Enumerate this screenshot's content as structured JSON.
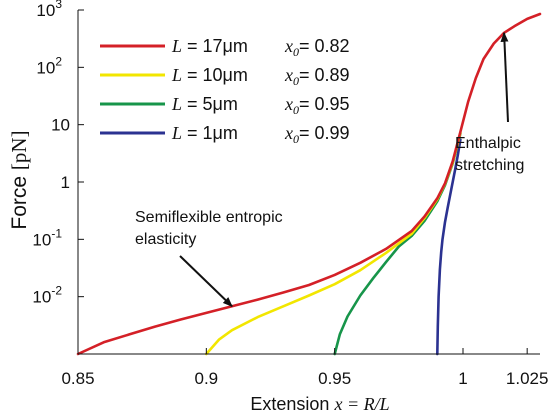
{
  "chart_data": {
    "type": "line",
    "xlabel": {
      "prefix": "Extension ",
      "formula": "x = R/L"
    },
    "ylabel": {
      "prefix": "Force ",
      "unit": "[pN]"
    },
    "x_scale": "linear",
    "y_scale": "log",
    "xlim": [
      0.85,
      1.03
    ],
    "ylim": [
      0.001,
      1000
    ],
    "grid": false,
    "legend_position": "top-left",
    "x_ticks": [
      {
        "value": 0.85,
        "label": "0.85"
      },
      {
        "value": 0.9,
        "label": "0.9"
      },
      {
        "value": 0.95,
        "label": "0.95"
      },
      {
        "value": 1.0,
        "label": "1"
      },
      {
        "value": 1.025,
        "label": "1.025"
      }
    ],
    "y_ticks": [
      {
        "value": 0.01,
        "base": "10",
        "exp": "-2"
      },
      {
        "value": 0.1,
        "base": "10",
        "exp": "-1"
      },
      {
        "value": 1,
        "base": "1",
        "exp": ""
      },
      {
        "value": 10,
        "base": "10",
        "exp": ""
      },
      {
        "value": 100,
        "base": "10",
        "exp": "2"
      },
      {
        "value": 1000,
        "base": "10",
        "exp": "3"
      }
    ],
    "series": [
      {
        "L_label": "L",
        "L_value": " = 17μm",
        "x0_label": "x",
        "x0_sub": "0",
        "x0_value": "= 0.82",
        "color": "#d42027",
        "x": [
          0.85,
          0.86,
          0.87,
          0.88,
          0.89,
          0.9,
          0.91,
          0.92,
          0.93,
          0.94,
          0.95,
          0.96,
          0.97,
          0.98,
          0.985,
          0.99,
          0.993,
          0.996,
          0.999,
          1.002,
          1.005,
          1.008,
          1.012,
          1.016,
          1.02,
          1.025,
          1.03
        ],
        "y": [
          0.001,
          0.0016,
          0.0022,
          0.003,
          0.004,
          0.0052,
          0.0068,
          0.0089,
          0.0118,
          0.016,
          0.024,
          0.039,
          0.068,
          0.14,
          0.25,
          0.52,
          0.95,
          2.3,
          7.5,
          25,
          65,
          140,
          260,
          400,
          520,
          700,
          850
        ]
      },
      {
        "L_label": "L",
        "L_value": " = 10μm",
        "x0_label": "x",
        "x0_sub": "0",
        "x0_value": "= 0.89",
        "color": "#f2e600",
        "x": [
          0.9,
          0.905,
          0.91,
          0.92,
          0.93,
          0.94,
          0.95,
          0.96,
          0.97,
          0.98,
          0.985,
          0.99,
          0.993,
          0.996,
          0.999
        ],
        "y": [
          0.001,
          0.0018,
          0.0026,
          0.0044,
          0.0068,
          0.0105,
          0.0165,
          0.029,
          0.058,
          0.125,
          0.235,
          0.5,
          0.93,
          2.2,
          7.2
        ]
      },
      {
        "L_label": "L",
        "L_value": " = 5μm",
        "x0_label": "x",
        "x0_sub": "0",
        "x0_value": "= 0.95",
        "color": "#17954a",
        "x": [
          0.95,
          0.952,
          0.955,
          0.96,
          0.965,
          0.97,
          0.975,
          0.98,
          0.985,
          0.99,
          0.993,
          0.996,
          0.999
        ],
        "y": [
          0.001,
          0.0022,
          0.0045,
          0.0105,
          0.021,
          0.04,
          0.075,
          0.115,
          0.21,
          0.46,
          0.88,
          2.1,
          7
        ]
      },
      {
        "L_label": "L",
        "L_value": " = 1μm",
        "x0_label": "x",
        "x0_sub": "0",
        "x0_value": "= 0.99",
        "color": "#2b3291",
        "x": [
          0.99,
          0.9902,
          0.9905,
          0.991,
          0.9915,
          0.992,
          0.993,
          0.994,
          0.995,
          0.996,
          0.997,
          0.998,
          0.999
        ],
        "y": [
          0.001,
          0.003,
          0.01,
          0.03,
          0.06,
          0.1,
          0.2,
          0.35,
          0.6,
          1.0,
          1.7,
          3.0,
          5.5
        ]
      }
    ],
    "annotations": [
      {
        "lines": [
          "Semiflexible entropic",
          "elasticity"
        ],
        "arrow_to_x": 0.91,
        "arrow_to_y": 0.0068
      },
      {
        "lines": [
          "Enthalpic",
          "stretching"
        ],
        "arrow_to_x": 1.016,
        "arrow_to_y": 400
      }
    ]
  }
}
